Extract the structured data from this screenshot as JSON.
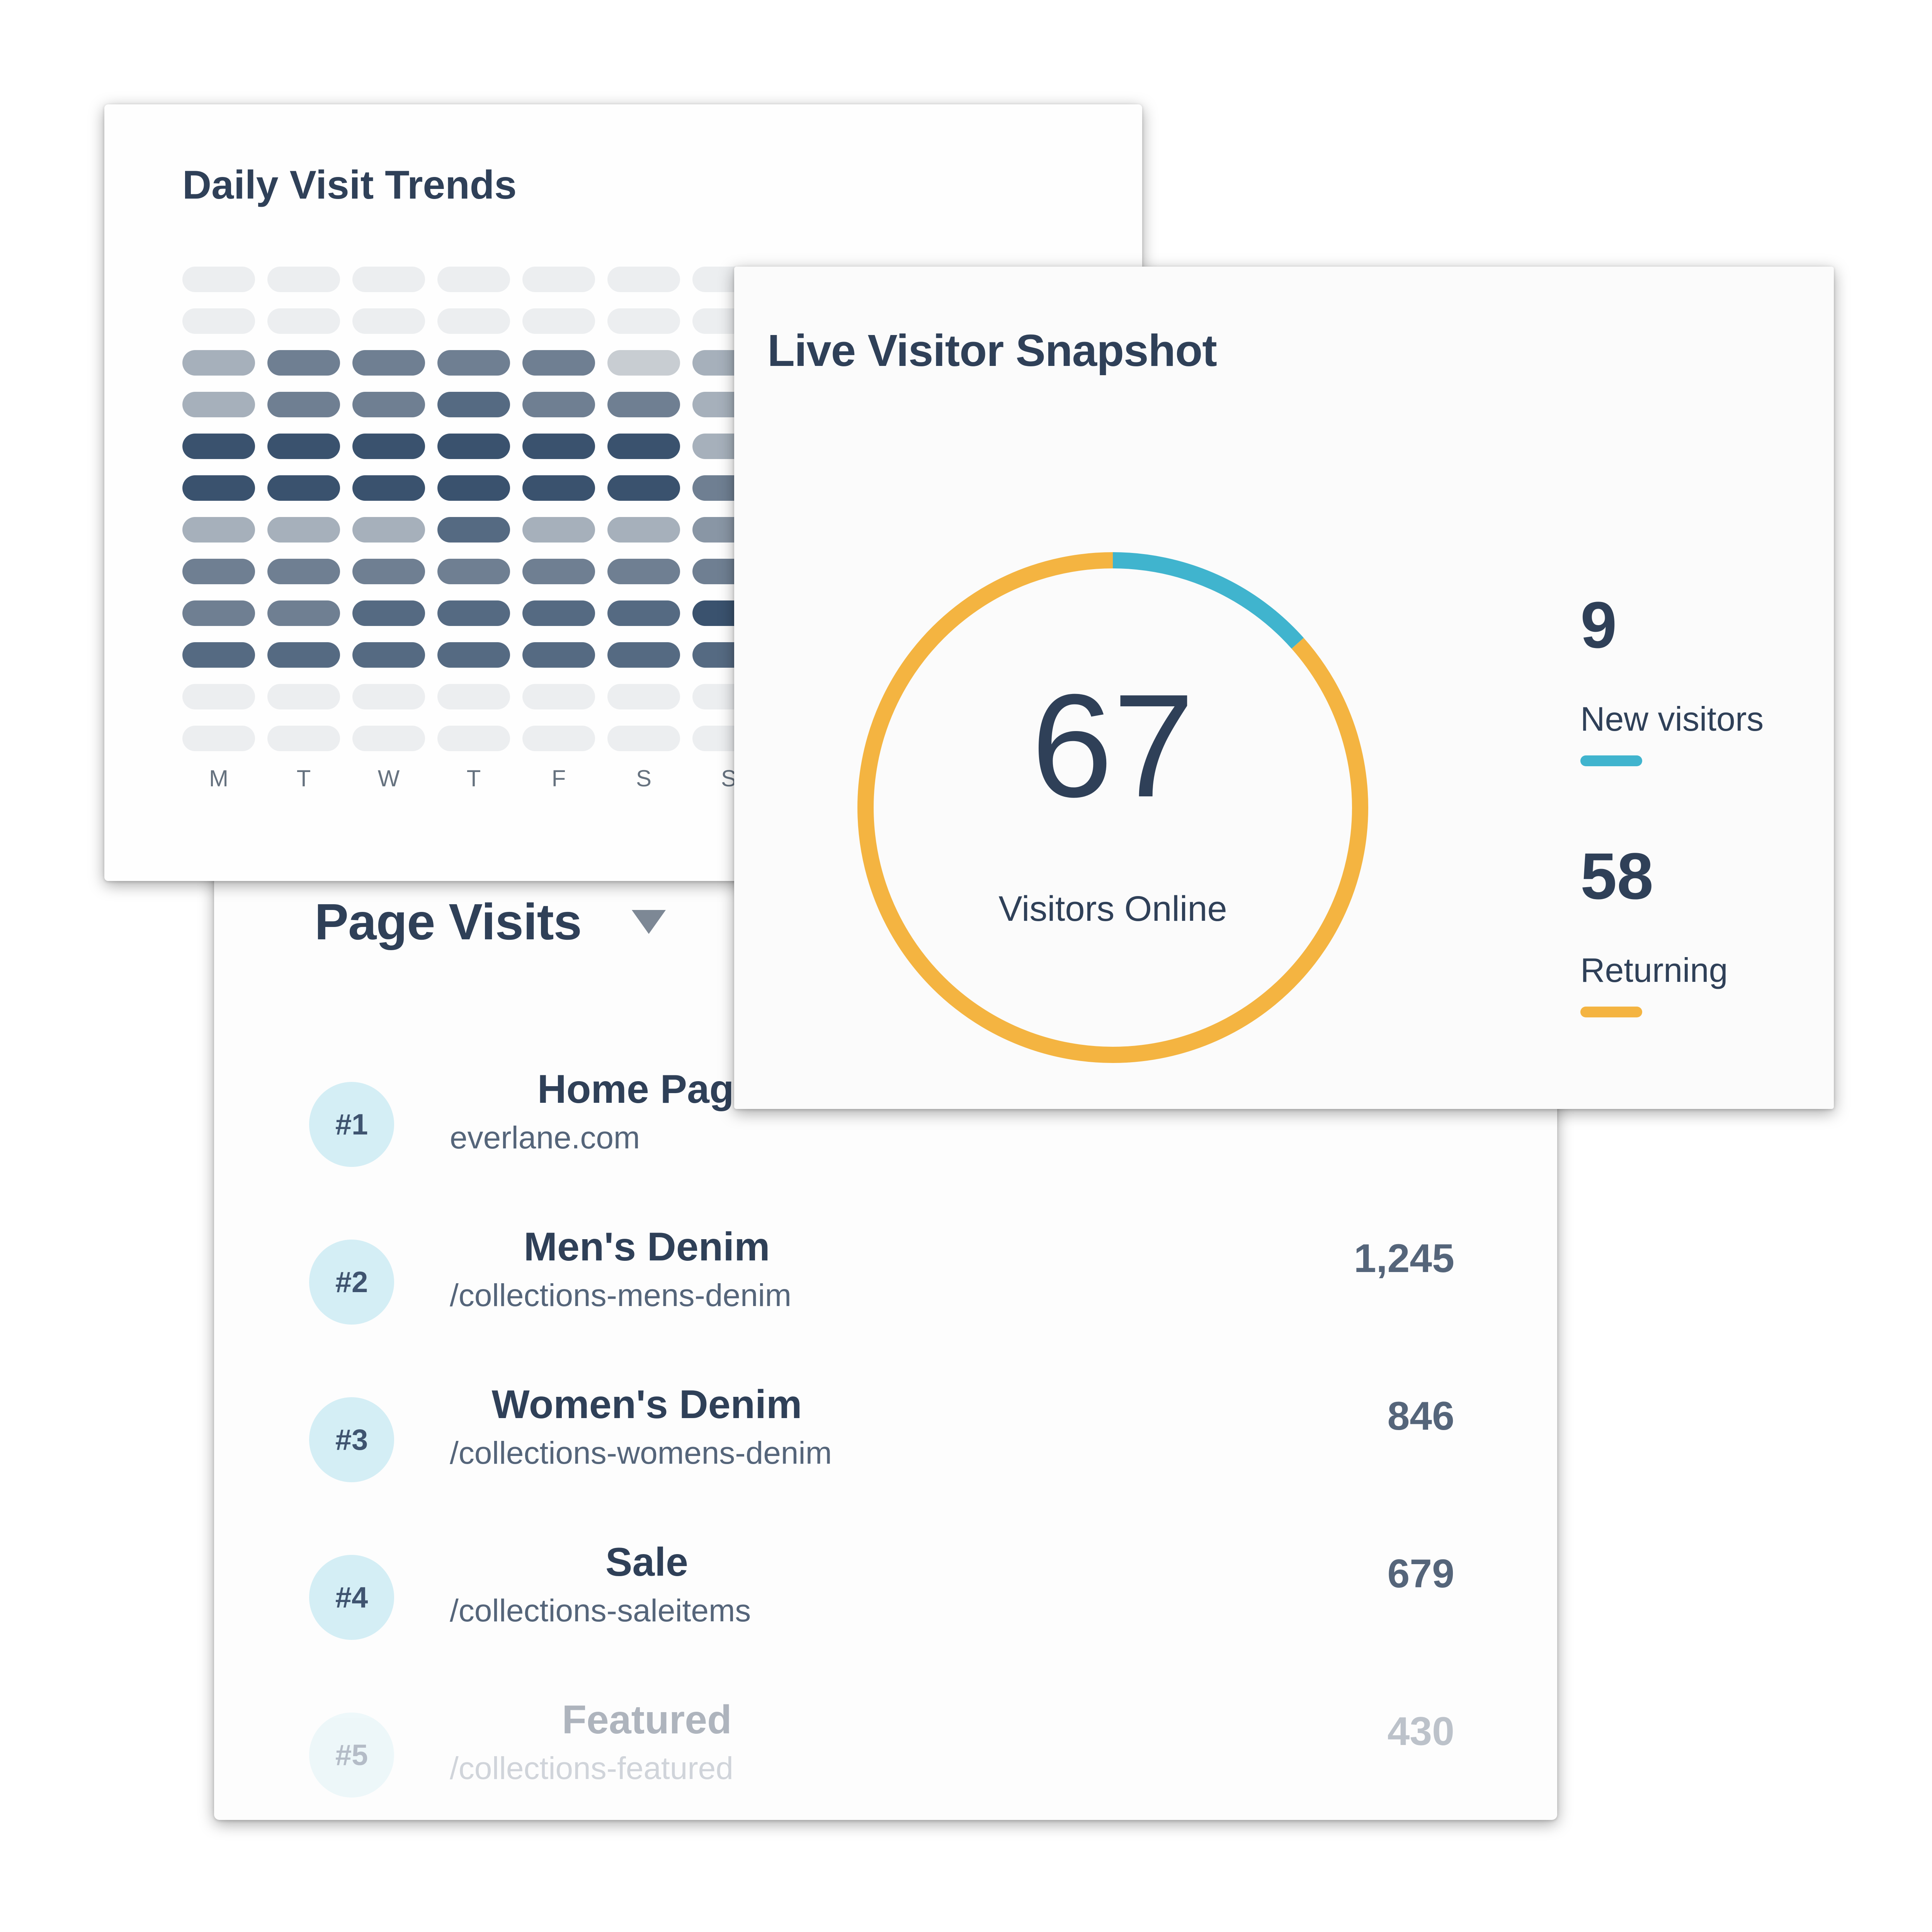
{
  "page_visits": {
    "title": "Page Visits",
    "rows": [
      {
        "rank": "#1",
        "name": "Home Page",
        "path": "everlane.com",
        "value": ""
      },
      {
        "rank": "#2",
        "name": "Men's Denim",
        "path": "/collections-mens-denim",
        "value": "1,245"
      },
      {
        "rank": "#3",
        "name": "Women's Denim",
        "path": "/collections-womens-denim",
        "value": "846"
      },
      {
        "rank": "#4",
        "name": "Sale",
        "path": "/collections-saleitems",
        "value": "679"
      },
      {
        "rank": "#5",
        "name": "Featured",
        "path": "/collections-featured",
        "value": "430"
      }
    ]
  },
  "daily_trends": {
    "title": "Daily Visit Trends",
    "days": [
      "M",
      "T",
      "W",
      "T",
      "F",
      "S",
      "S"
    ]
  },
  "live_snapshot": {
    "title": "Live Visitor Snapshot",
    "total": "67",
    "total_label": "Visitors Online",
    "new_count": "9",
    "new_label": "New visitors",
    "returning_count": "58",
    "returning_label": "Returning"
  },
  "colors": {
    "new": "#40b4ce",
    "returning": "#f4b441",
    "heat": [
      "#eceef0",
      "#c8cdd2",
      "#a6b0bb",
      "#8996a5",
      "#6f7f92",
      "#556a82",
      "#3a526e"
    ]
  },
  "chart_data": [
    {
      "type": "heatmap",
      "title": "Daily Visit Trends",
      "x": [
        "M",
        "T",
        "W",
        "T",
        "F",
        "S",
        "S"
      ],
      "rows": 12,
      "values": [
        [
          0,
          0,
          0,
          0,
          0,
          0,
          0
        ],
        [
          0,
          0,
          0,
          0,
          0,
          0,
          0
        ],
        [
          2,
          4,
          4,
          4,
          4,
          1,
          2
        ],
        [
          2,
          4,
          4,
          5,
          4,
          4,
          2
        ],
        [
          6,
          6,
          6,
          6,
          6,
          6,
          2
        ],
        [
          6,
          6,
          6,
          6,
          6,
          6,
          4
        ],
        [
          2,
          2,
          2,
          5,
          2,
          2,
          3
        ],
        [
          4,
          4,
          4,
          4,
          4,
          4,
          4
        ],
        [
          4,
          4,
          5,
          5,
          5,
          5,
          6
        ],
        [
          5,
          5,
          5,
          5,
          5,
          5,
          5
        ],
        [
          0,
          0,
          0,
          0,
          0,
          0,
          0
        ],
        [
          0,
          0,
          0,
          0,
          0,
          0,
          0
        ]
      ]
    },
    {
      "type": "pie",
      "title": "Live Visitor Snapshot",
      "categories": [
        "New visitors",
        "Returning"
      ],
      "values": [
        9,
        58
      ]
    }
  ]
}
